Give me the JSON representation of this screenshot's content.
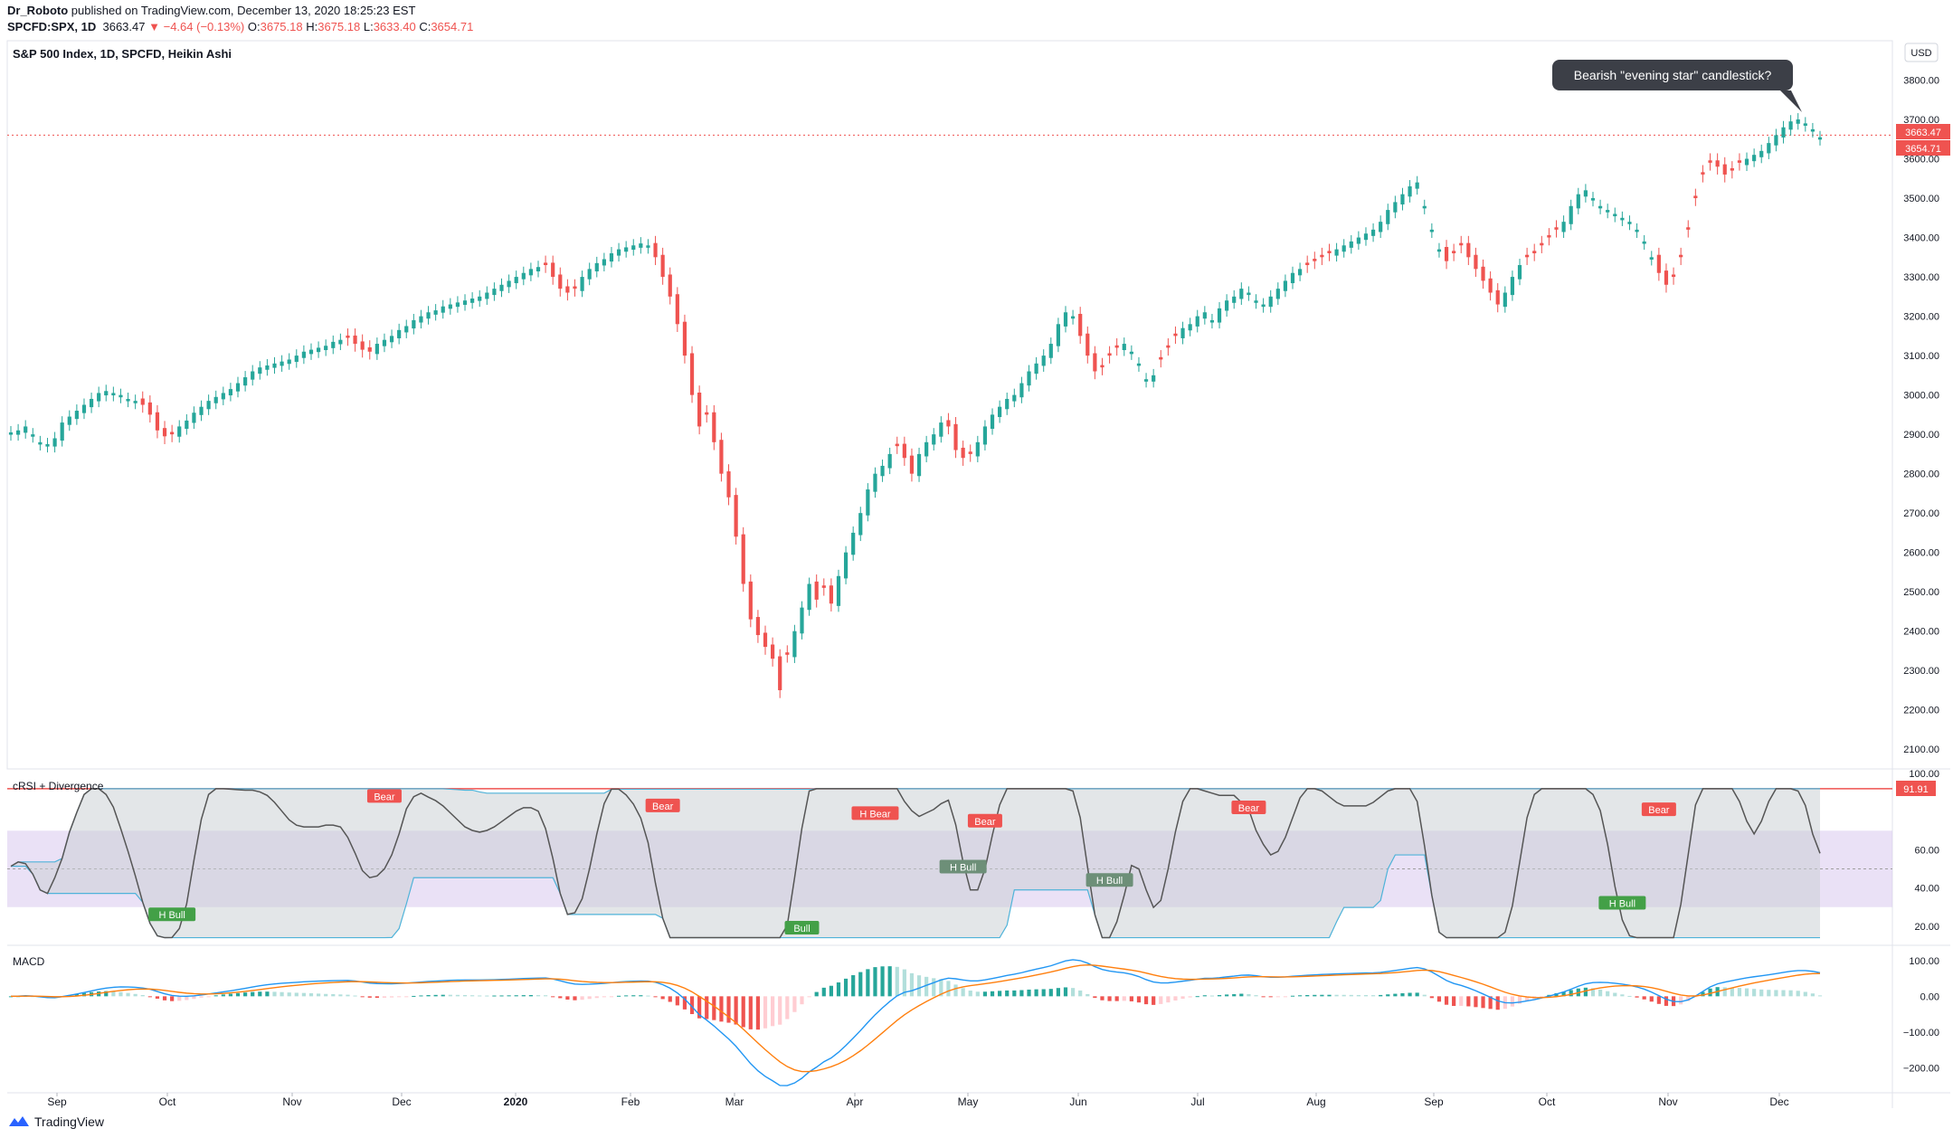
{
  "header": {
    "author": "Dr_Roboto",
    "published": " published on TradingView.com, December 13, 2020 18:25:23 EST",
    "symbol": "SPCFD:SPX, 1D",
    "last": "3663.47",
    "change": "−4.64 (−0.13%)",
    "o_label": "O:",
    "o": "3675.18",
    "h_label": "H:",
    "h": "3675.18",
    "l_label": "L:",
    "l": "3633.40",
    "c_label": "C:",
    "c": "3654.71"
  },
  "footer": {
    "brand": "TradingView"
  },
  "colors": {
    "up": "#26a69a",
    "down": "#ef5350",
    "rsi": "#555555",
    "band": "#4fb3d9",
    "macd": "#2196f3",
    "signal": "#ff7f0e",
    "fill": "#d9c9ee"
  },
  "chart_data": [
    {
      "type": "candlestick",
      "title": "S&P 500 Index, 1D, SPCFD, Heikin Ashi",
      "y_axis_unit": "USD",
      "ylim": [
        2050,
        3900
      ],
      "y_ticks": [
        "2100.00",
        "2200.00",
        "2300.00",
        "2400.00",
        "2500.00",
        "2600.00",
        "2700.00",
        "2800.00",
        "2900.00",
        "3000.00",
        "3100.00",
        "3200.00",
        "3300.00",
        "3400.00",
        "3500.00",
        "3600.00",
        "3700.00",
        "3800.00"
      ],
      "x_ticks": [
        "Sep",
        "Oct",
        "Nov",
        "Dec",
        "2020",
        "Feb",
        "Mar",
        "Apr",
        "May",
        "Jun",
        "Jul",
        "Aug",
        "Sep",
        "Oct",
        "Nov",
        "Dec"
      ],
      "price_labels": [
        "3663.47",
        "3654.71"
      ],
      "annotation": "Bearish \"evening star\" candlestick?",
      "series_closes": [
        2905,
        2910,
        2920,
        2900,
        2880,
        2875,
        2890,
        2930,
        2945,
        2960,
        2975,
        2990,
        3005,
        3010,
        3005,
        3000,
        2990,
        2985,
        2975,
        2950,
        2910,
        2895,
        2900,
        2920,
        2935,
        2955,
        2970,
        2985,
        2995,
        3005,
        3015,
        3030,
        3045,
        3060,
        3070,
        3075,
        3080,
        3085,
        3090,
        3100,
        3110,
        3115,
        3120,
        3125,
        3135,
        3140,
        3145,
        3130,
        3115,
        3110,
        3130,
        3140,
        3150,
        3165,
        3175,
        3190,
        3200,
        3210,
        3215,
        3225,
        3230,
        3235,
        3240,
        3245,
        3250,
        3260,
        3270,
        3280,
        3290,
        3300,
        3310,
        3320,
        3325,
        3330,
        3300,
        3270,
        3260,
        3270,
        3300,
        3320,
        3335,
        3345,
        3360,
        3370,
        3375,
        3380,
        3385,
        3380,
        3350,
        3300,
        3250,
        3180,
        3100,
        3000,
        2920,
        2950,
        2880,
        2800,
        2740,
        2640,
        2520,
        2430,
        2390,
        2360,
        2330,
        2250,
        2340,
        2400,
        2460,
        2520,
        2480,
        2510,
        2470,
        2540,
        2600,
        2650,
        2700,
        2760,
        2800,
        2820,
        2850,
        2870,
        2840,
        2800,
        2850,
        2880,
        2900,
        2930,
        2920,
        2860,
        2840,
        2850,
        2880,
        2920,
        2950,
        2970,
        2990,
        3000,
        3030,
        3060,
        3080,
        3100,
        3130,
        3180,
        3210,
        3200,
        3150,
        3100,
        3060,
        3070,
        3100,
        3120,
        3130,
        3110,
        3080,
        3040,
        3050,
        3090,
        3120,
        3150,
        3170,
        3180,
        3200,
        3210,
        3190,
        3220,
        3240,
        3250,
        3270,
        3260,
        3240,
        3230,
        3250,
        3270,
        3290,
        3310,
        3320,
        3330,
        3340,
        3350,
        3360,
        3370,
        3380,
        3390,
        3400,
        3410,
        3420,
        3440,
        3470,
        3490,
        3510,
        3530,
        3540,
        3480,
        3420,
        3370,
        3340,
        3360,
        3380,
        3350,
        3320,
        3290,
        3260,
        3230,
        3260,
        3300,
        3330,
        3350,
        3360,
        3380,
        3400,
        3420,
        3440,
        3480,
        3510,
        3520,
        3500,
        3480,
        3470,
        3460,
        3450,
        3440,
        3420,
        3390,
        3350,
        3310,
        3280,
        3300,
        3350,
        3420,
        3500,
        3560,
        3590,
        3580,
        3560,
        3570,
        3590,
        3600,
        3610,
        3620,
        3640,
        3660,
        3680,
        3695,
        3700,
        3690,
        3675,
        3654.71
      ],
      "down_runs": [
        [
          18,
          22
        ],
        [
          46,
          49
        ],
        [
          73,
          77
        ],
        [
          88,
          106
        ],
        [
          110,
          112
        ],
        [
          121,
          123
        ],
        [
          128,
          131
        ],
        [
          146,
          151
        ],
        [
          157,
          159
        ],
        [
          177,
          180
        ],
        [
          196,
          203
        ],
        [
          207,
          211
        ],
        [
          225,
          236
        ],
        [
          253,
          257
        ]
      ]
    },
    {
      "type": "line",
      "title": "cRSI + Divergence",
      "ylim": [
        10,
        100
      ],
      "y_ticks": [
        "100.00",
        "60.00",
        "40.00",
        "20.00"
      ],
      "last_value": "91.91",
      "labels": [
        {
          "text": "Bear",
          "kind": "bear",
          "x": 51,
          "y": 88
        },
        {
          "text": "H Bull",
          "kind": "bull",
          "x": 22,
          "y": 26
        },
        {
          "text": "Bear",
          "kind": "bear",
          "x": 89,
          "y": 83
        },
        {
          "text": "H Bear",
          "kind": "bear",
          "x": 118,
          "y": 79
        },
        {
          "text": "Bear",
          "kind": "bear",
          "x": 133,
          "y": 75
        },
        {
          "text": "H Bull",
          "kind": "bull-muted",
          "x": 130,
          "y": 51
        },
        {
          "text": "H Bull",
          "kind": "bull-muted",
          "x": 150,
          "y": 44
        },
        {
          "text": "Bull",
          "kind": "bull",
          "x": 108,
          "y": 19
        },
        {
          "text": "Bear",
          "kind": "bear",
          "x": 169,
          "y": 82
        },
        {
          "text": "Bear",
          "kind": "bear",
          "x": 225,
          "y": 81
        },
        {
          "text": "H Bull",
          "kind": "bull",
          "x": 220,
          "y": 32
        }
      ]
    },
    {
      "type": "line",
      "title": "MACD",
      "ylim": [
        -270,
        130
      ],
      "y_ticks": [
        "100.00",
        "0.00",
        "−100.00",
        "−200.00"
      ]
    }
  ]
}
